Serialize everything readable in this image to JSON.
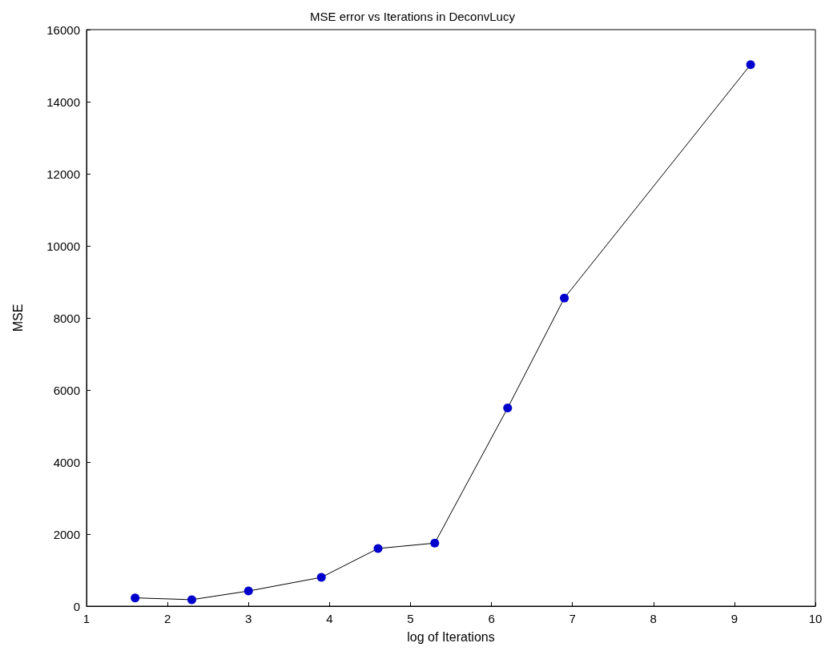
{
  "chart_data": {
    "type": "line",
    "title": "MSE error vs Iterations in DeconvLucy",
    "xlabel": "log of Iterations",
    "ylabel": "MSE",
    "x": [
      1.6,
      2.3,
      3.0,
      3.9,
      4.6,
      5.3,
      6.2,
      6.9,
      9.2
    ],
    "series": [
      {
        "color": "#0000cc",
        "values": [
          230,
          180,
          420,
          800,
          1600,
          1750,
          5500,
          8550,
          15030
        ]
      }
    ],
    "xlim": [
      1,
      10
    ],
    "xticks": [
      1,
      2,
      3,
      4,
      5,
      6,
      7,
      8,
      9,
      10
    ],
    "ylim": [
      0,
      16000
    ],
    "yticks": [
      0,
      2000,
      4000,
      6000,
      8000,
      10000,
      12000,
      14000,
      16000
    ],
    "grid": false,
    "marker": "circle",
    "line_style": "solid"
  }
}
